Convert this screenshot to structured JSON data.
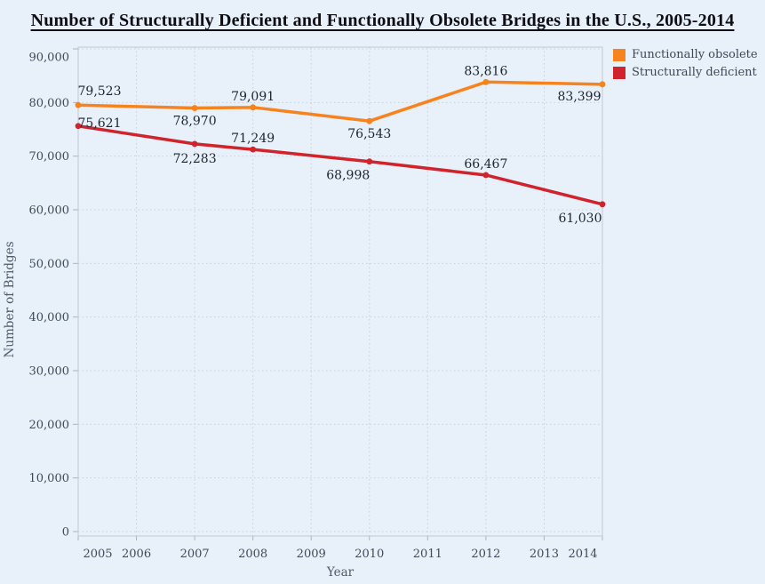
{
  "page": {
    "background": "#e8f0fa"
  },
  "title": "Number of Structurally Deficient and Functionally Obsolete Bridges in the U.S., 2005-2014",
  "legend": [
    {
      "label": "Functionally obsolete",
      "color": "#f6831d"
    },
    {
      "label": "Structurally deficient",
      "color": "#d0232b"
    }
  ],
  "chart_data": {
    "type": "line",
    "title": "Number of Structurally Deficient and Functionally Obsolete Bridges in the U.S., 2005-2014",
    "xlabel": "Year",
    "ylabel": "Number of Bridges",
    "xlim": [
      2005,
      2014
    ],
    "ylim": [
      0,
      90000
    ],
    "grid": "dotted",
    "legend_position": "top-right",
    "x": [
      2005,
      2007,
      2008,
      2010,
      2012,
      2014
    ],
    "series": [
      {
        "name": "Functionally obsolete",
        "color": "#f6831d",
        "values": [
          79523,
          78970,
          79091,
          76543,
          83816,
          83399
        ],
        "point_labels": [
          "79,523",
          "78,970",
          "79,091",
          "76,543",
          "83,816",
          "83,399"
        ],
        "label_offsets": [
          [
            24,
            -16
          ],
          [
            0,
            14
          ],
          [
            0,
            -13
          ],
          [
            0,
            14
          ],
          [
            0,
            -13
          ],
          [
            -26,
            13
          ]
        ]
      },
      {
        "name": "Structurally deficient",
        "color": "#d0232b",
        "values": [
          75621,
          72283,
          71249,
          68998,
          66467,
          61030
        ],
        "point_labels": [
          "75,621",
          "72,283",
          "71,249",
          "68,998",
          "66,467",
          "61,030"
        ],
        "label_offsets": [
          [
            24,
            -4
          ],
          [
            0,
            16
          ],
          [
            0,
            -13
          ],
          [
            -24,
            15
          ],
          [
            0,
            -13
          ],
          [
            -25,
            15
          ]
        ]
      }
    ],
    "x_ticks": {
      "values": [
        2005,
        2006,
        2007,
        2008,
        2009,
        2010,
        2011,
        2012,
        2013,
        2014
      ],
      "labels": [
        "2005",
        "2006",
        "2007",
        "2008",
        "2009",
        "2010",
        "2011",
        "2012",
        "2013",
        "2014"
      ]
    },
    "y_ticks": {
      "values": [
        0,
        10000,
        20000,
        30000,
        40000,
        50000,
        60000,
        70000,
        80000,
        90000
      ],
      "labels": [
        "0",
        "10,000",
        "20,000",
        "30,000",
        "40,000",
        "50,000",
        "60,000",
        "70,000",
        "80,000",
        "90,000"
      ]
    }
  }
}
